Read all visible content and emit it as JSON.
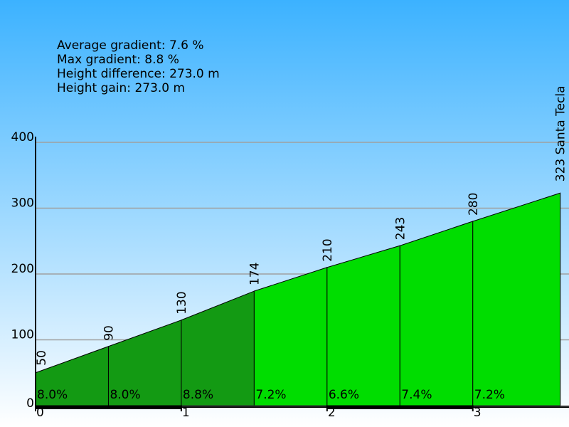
{
  "chart_data": {
    "type": "profile",
    "stats": [
      "Average gradient: 7.6 %",
      "Max gradient: 8.8 %",
      "Height difference: 273.0 m",
      "Height gain: 273.0 m"
    ],
    "x": [
      0,
      0.5,
      1,
      1.5,
      2,
      2.5,
      3,
      3.6
    ],
    "values": [
      50,
      90,
      130,
      174,
      210,
      243,
      280,
      323
    ],
    "end_label": "323 Santa Tecla",
    "segment_labels": [
      "8.0%",
      "8.0%",
      "8.8%",
      "7.2%",
      "6.6%",
      "7.4%",
      "7.2%"
    ],
    "segment_colors": [
      "#139a13",
      "#139a13",
      "#139a13",
      "#00dd00",
      "#00dd00",
      "#00dd00",
      "#00dd00"
    ],
    "xlim": [
      0,
      3.66
    ],
    "xticks": [
      0,
      1,
      2,
      3
    ],
    "ylim": [
      0,
      400
    ],
    "yticks": [
      0,
      100,
      200,
      300,
      400
    ],
    "grid": true
  }
}
